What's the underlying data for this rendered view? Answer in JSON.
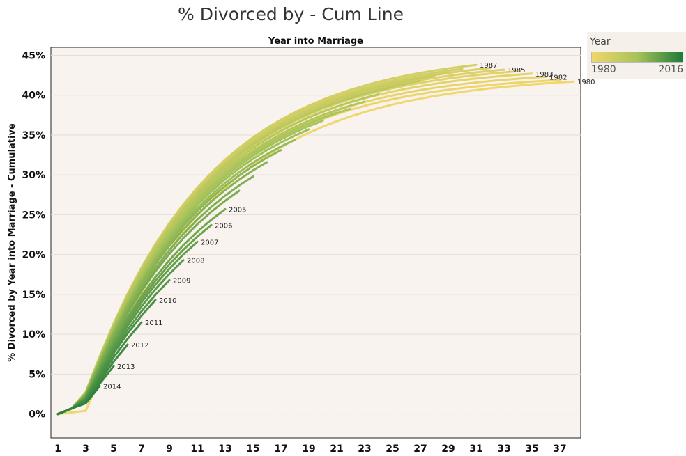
{
  "title": "% Divorced by - Cum Line",
  "legend": {
    "title": "Year",
    "min_label": "1980",
    "max_label": "2016",
    "color_low": "#f0d66c",
    "color_mid": "#a7c35a",
    "color_high": "#1f7a3a"
  },
  "chart_data": {
    "type": "line",
    "title": "% Divorced by - Cum Line",
    "subtitle": "Year into Marriage",
    "xlabel": "",
    "ylabel": "% Divorced by Year into Marriage - Cumulative",
    "xlim": [
      0.5,
      38.5
    ],
    "ylim": [
      -0.03,
      0.46
    ],
    "x_ticks": [
      "1",
      "3",
      "5",
      "7",
      "9",
      "11",
      "13",
      "15",
      "17",
      "19",
      "21",
      "23",
      "25",
      "27",
      "29",
      "31",
      "33",
      "35",
      "37"
    ],
    "y_ticks": [
      "0%",
      "5%",
      "10%",
      "15%",
      "20%",
      "25%",
      "30%",
      "35%",
      "40%",
      "45%"
    ],
    "grid": true,
    "legend_position": "right",
    "color_encoding": "year",
    "series": [
      {
        "name": "1980",
        "year": 1980,
        "label": "1980",
        "last_x": 38,
        "final": 0.417
      },
      {
        "name": "1981",
        "year": 1981,
        "label": "",
        "last_x": 37,
        "final": 0.419
      },
      {
        "name": "1982",
        "year": 1982,
        "label": "1982",
        "last_x": 36,
        "final": 0.423
      },
      {
        "name": "1983",
        "year": 1983,
        "label": "1983",
        "last_x": 35,
        "final": 0.427
      },
      {
        "name": "1984",
        "year": 1984,
        "label": "",
        "last_x": 34,
        "final": 0.43
      },
      {
        "name": "1985",
        "year": 1985,
        "label": "1985",
        "last_x": 33,
        "final": 0.432
      },
      {
        "name": "1986",
        "year": 1986,
        "label": "",
        "last_x": 32,
        "final": 0.434
      },
      {
        "name": "1987",
        "year": 1987,
        "label": "1987",
        "last_x": 31,
        "final": 0.438
      },
      {
        "name": "1988",
        "year": 1988,
        "label": "",
        "last_x": 30,
        "final": 0.433
      },
      {
        "name": "1989",
        "year": 1989,
        "label": "",
        "last_x": 29,
        "final": 0.428
      },
      {
        "name": "1990",
        "year": 1990,
        "label": "",
        "last_x": 28,
        "final": 0.424
      },
      {
        "name": "1991",
        "year": 1991,
        "label": "",
        "last_x": 27,
        "final": 0.418
      },
      {
        "name": "1992",
        "year": 1992,
        "label": "",
        "last_x": 26,
        "final": 0.414
      },
      {
        "name": "1993",
        "year": 1993,
        "label": "",
        "last_x": 25,
        "final": 0.41
      },
      {
        "name": "1994",
        "year": 1994,
        "label": "",
        "last_x": 24,
        "final": 0.401
      },
      {
        "name": "1995",
        "year": 1995,
        "label": "",
        "last_x": 23,
        "final": 0.392
      },
      {
        "name": "1996",
        "year": 1996,
        "label": "",
        "last_x": 22,
        "final": 0.383
      },
      {
        "name": "1997",
        "year": 1997,
        "label": "",
        "last_x": 21,
        "final": 0.378
      },
      {
        "name": "1998",
        "year": 1998,
        "label": "",
        "last_x": 20,
        "final": 0.368
      },
      {
        "name": "1999",
        "year": 1999,
        "label": "",
        "last_x": 19,
        "final": 0.357
      },
      {
        "name": "2000",
        "year": 2000,
        "label": "",
        "last_x": 18,
        "final": 0.344
      },
      {
        "name": "2001",
        "year": 2001,
        "label": "",
        "last_x": 17,
        "final": 0.331
      },
      {
        "name": "2002",
        "year": 2002,
        "label": "",
        "last_x": 16,
        "final": 0.316
      },
      {
        "name": "2003",
        "year": 2003,
        "label": "",
        "last_x": 15,
        "final": 0.298
      },
      {
        "name": "2004",
        "year": 2004,
        "label": "",
        "last_x": 14,
        "final": 0.28
      },
      {
        "name": "2005",
        "year": 2005,
        "label": "2005",
        "last_x": 13,
        "final": 0.257
      },
      {
        "name": "2006",
        "year": 2006,
        "label": "2006",
        "last_x": 12,
        "final": 0.237
      },
      {
        "name": "2007",
        "year": 2007,
        "label": "2007",
        "last_x": 11,
        "final": 0.216
      },
      {
        "name": "2008",
        "year": 2008,
        "label": "2008",
        "last_x": 10,
        "final": 0.193
      },
      {
        "name": "2009",
        "year": 2009,
        "label": "2009",
        "last_x": 9,
        "final": 0.168
      },
      {
        "name": "2010",
        "year": 2010,
        "label": "2010",
        "last_x": 8,
        "final": 0.143
      },
      {
        "name": "2011",
        "year": 2011,
        "label": "2011",
        "last_x": 7,
        "final": 0.115
      },
      {
        "name": "2012",
        "year": 2012,
        "label": "2012",
        "last_x": 6,
        "final": 0.087
      },
      {
        "name": "2013",
        "year": 2013,
        "label": "2013",
        "last_x": 5,
        "final": 0.06
      },
      {
        "name": "2014",
        "year": 2014,
        "label": "2014",
        "last_x": 4,
        "final": 0.035
      }
    ]
  }
}
